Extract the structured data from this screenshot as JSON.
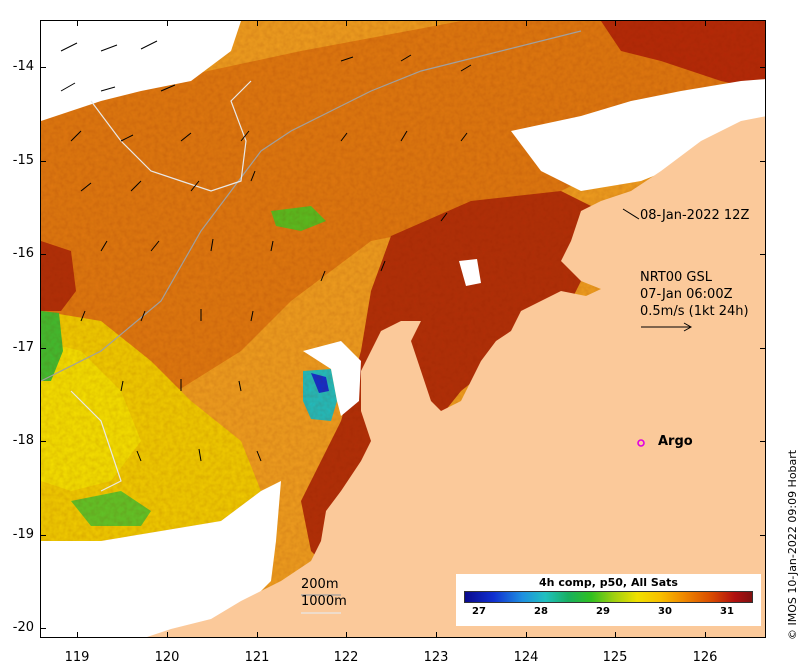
{
  "map": {
    "annotation_timestamp": "08-Jan-2022 12Z",
    "current_info": [
      "NRT00 GSL",
      "07-Jan 06:00Z",
      "0.5m/s (1kt 24h)"
    ],
    "argo_label": "Argo",
    "isobath_labels": [
      "200m",
      "1000m"
    ],
    "credit": "© IMOS 10-Jan-2022 09:09 Hobart",
    "colors": {
      "land": "#fbc99a",
      "cloud": "#ffffff",
      "argo_marker": "#e000e0",
      "isobath": "#a0a0a0"
    }
  },
  "axes": {
    "y_ticks": [
      "-14",
      "-15",
      "-16",
      "-17",
      "-18",
      "-19",
      "-20"
    ],
    "x_ticks": [
      "119",
      "120",
      "121",
      "122",
      "123",
      "124",
      "125",
      "126"
    ]
  },
  "colorbar": {
    "title": "4h comp, p50, All Sats",
    "ticks": [
      "27",
      "28",
      "29",
      "30",
      "31"
    ]
  }
}
